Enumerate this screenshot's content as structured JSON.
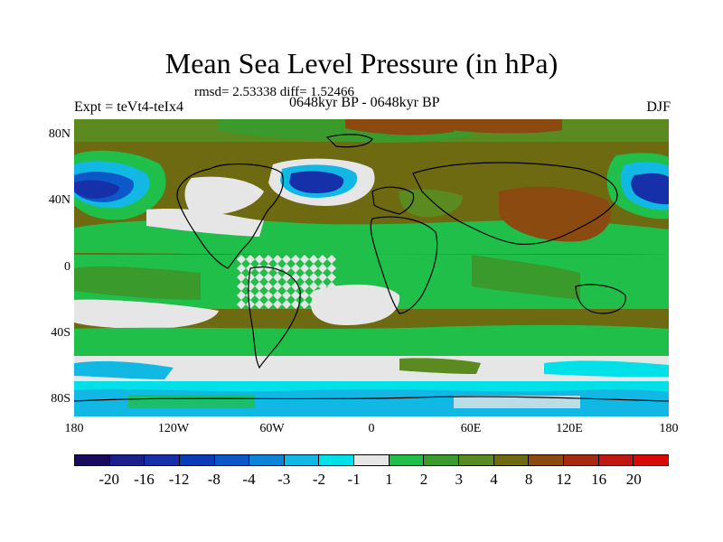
{
  "title": "Mean Sea Level Pressure (in hPa)",
  "stats_text": "rmsd= 2.53338 diff= 1.52466",
  "experiment_label": "Expt = teVt4-teIx4",
  "period_label": "0648kyr BP - 0648kyr BP",
  "season_label": "DJF",
  "y_axis_labels": [
    "80N",
    "40N",
    "0",
    "40S",
    "80S"
  ],
  "x_axis_labels": [
    "180",
    "120W",
    "60W",
    "0",
    "60E",
    "120E",
    "180"
  ],
  "colorbar": {
    "labels": [
      "-20",
      "-16",
      "-12",
      "-8",
      "-4",
      "-3",
      "-2",
      "-1",
      "1",
      "2",
      "3",
      "4",
      "8",
      "12",
      "16",
      "20"
    ],
    "colors": [
      "#1a0a5e",
      "#1d1f8f",
      "#1530a8",
      "#0a3cb8",
      "#0c58c8",
      "#0d84d6",
      "#12b8e4",
      "#00e0e8",
      "#e6e6e6",
      "#20bf4a",
      "#3a9a2c",
      "#5a8a20",
      "#6e6a12",
      "#8a4a10",
      "#a62a10",
      "#c01810",
      "#d80a08"
    ]
  }
}
